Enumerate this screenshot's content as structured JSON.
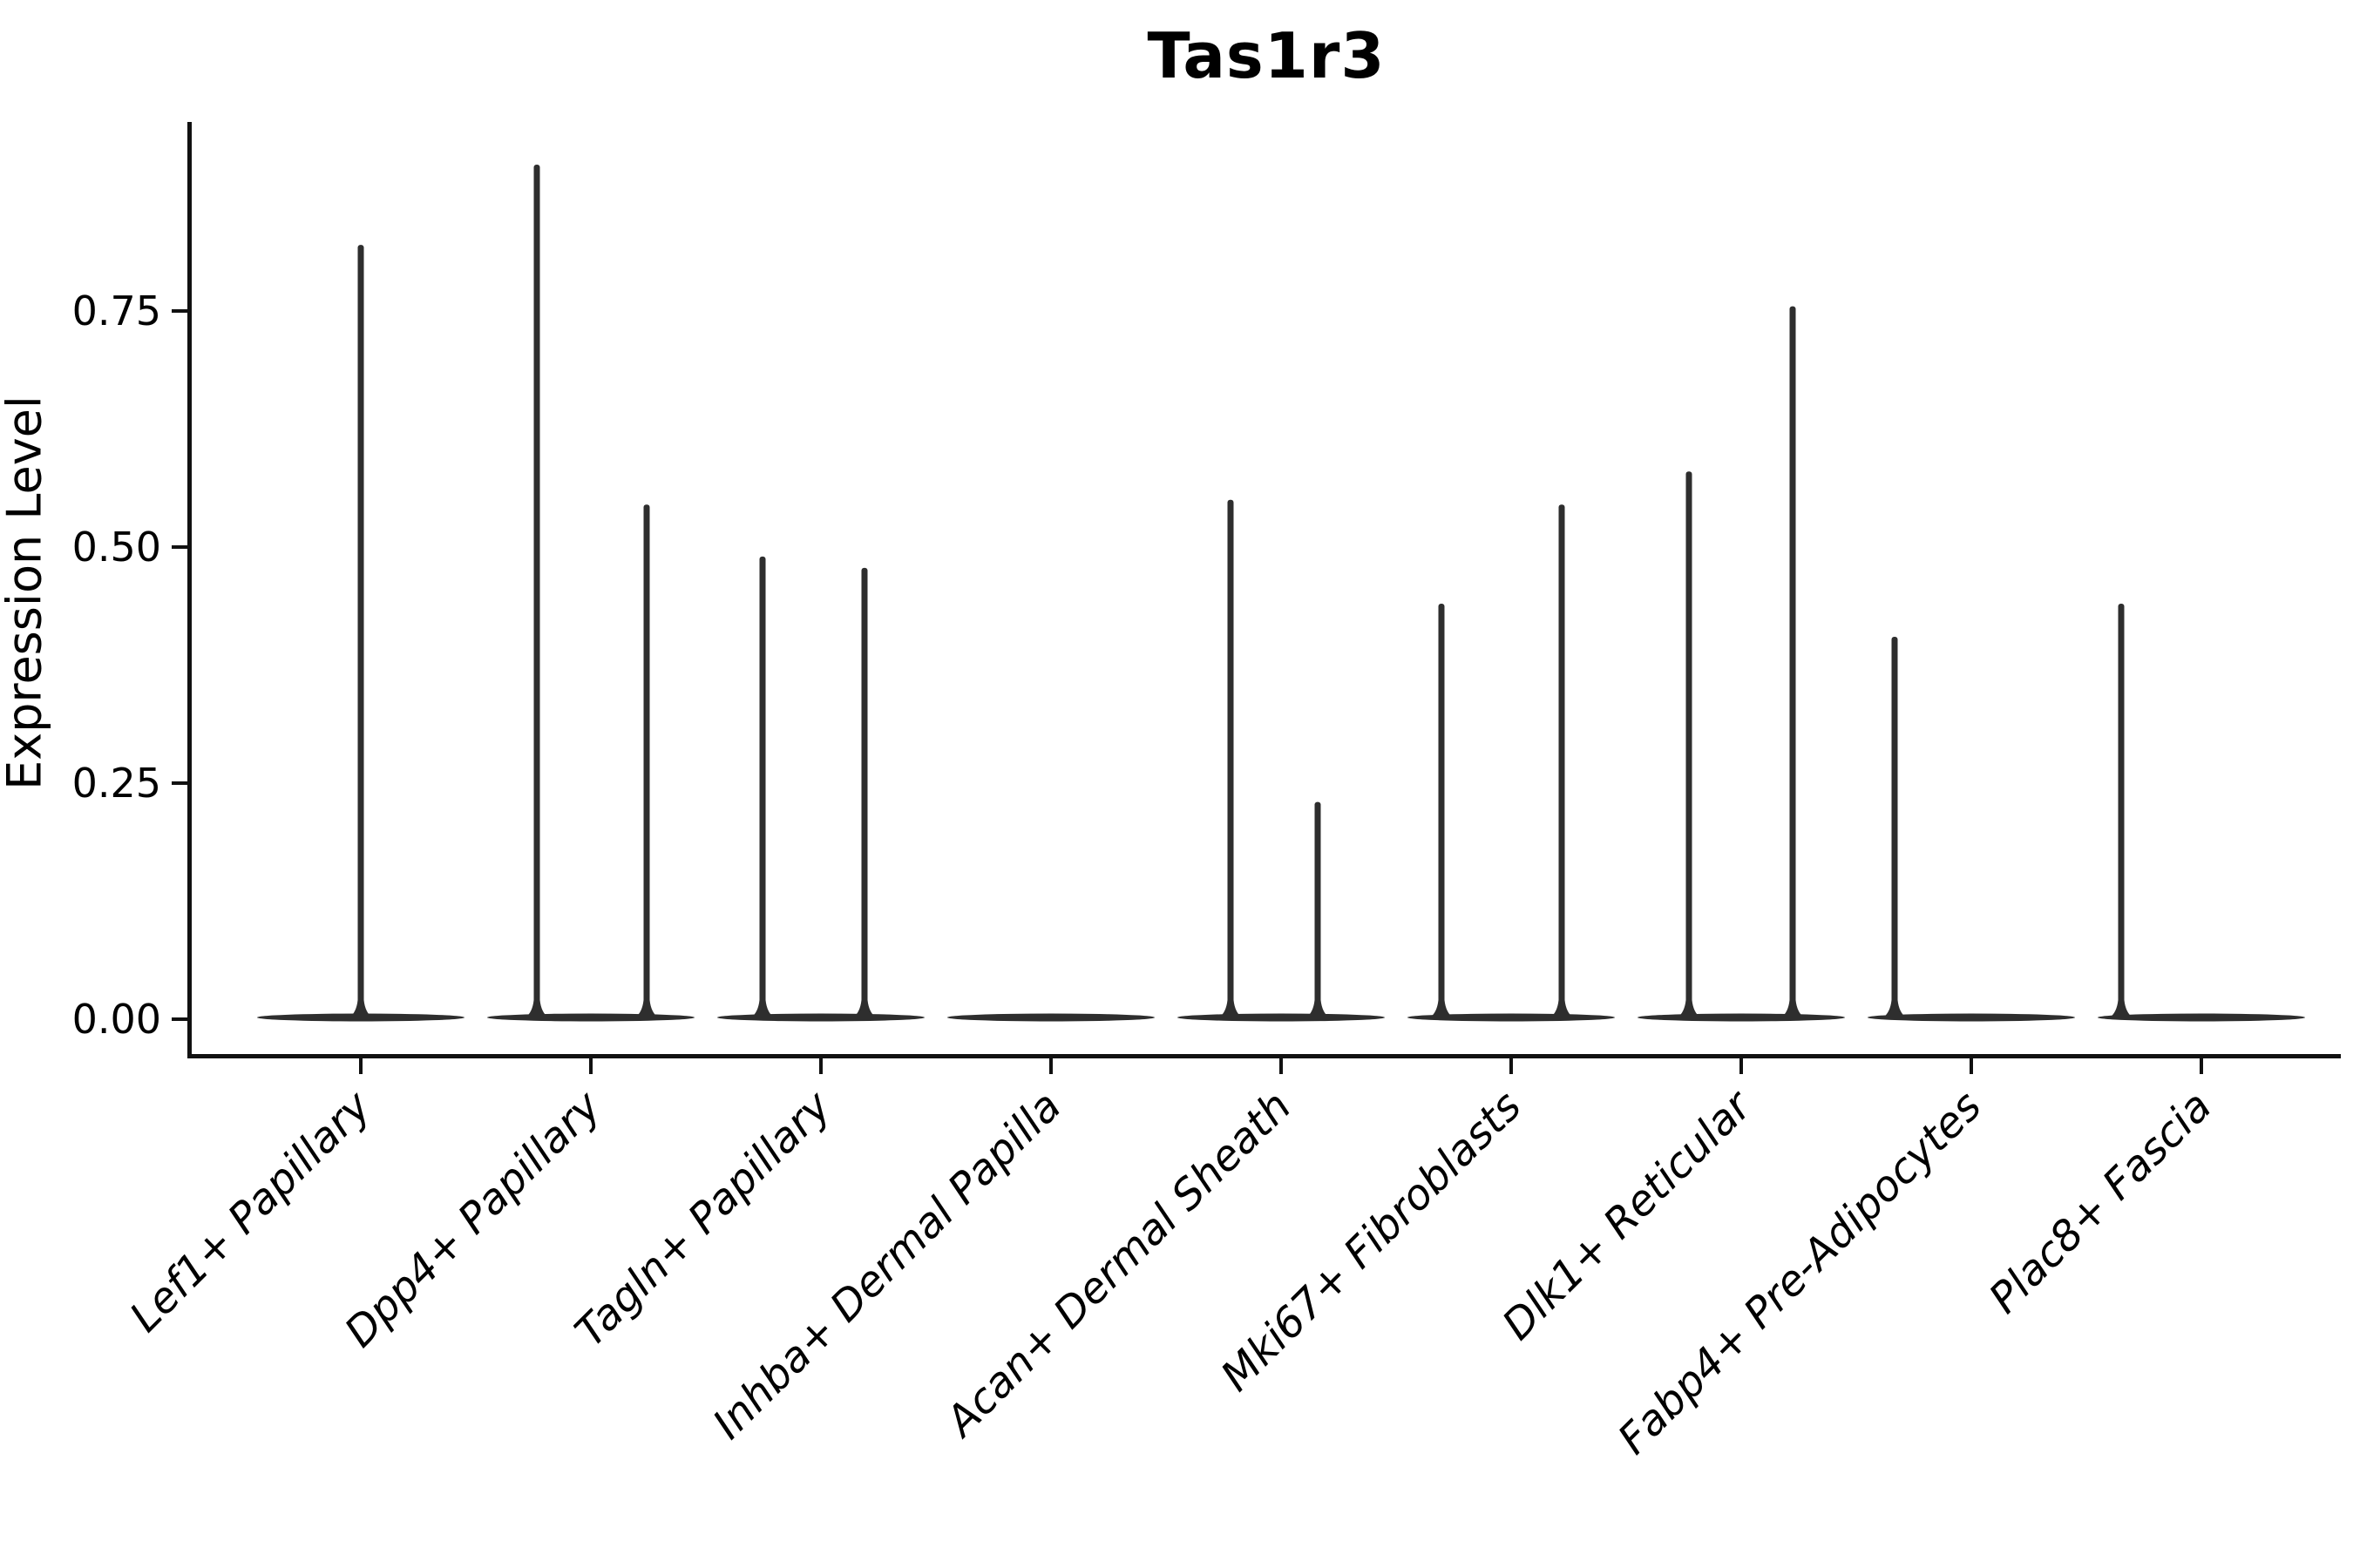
{
  "figure": {
    "title": "Tas1r3",
    "ylabel": "Expression Level"
  },
  "chart_data": {
    "type": "violin",
    "title": "Tas1r3",
    "xlabel": "",
    "ylabel": "Expression Level",
    "ylim": [
      -0.035,
      0.95
    ],
    "grid": false,
    "legend": false,
    "background": "#ffffff",
    "yticks": [
      {
        "label": "0.00",
        "value": 0.0
      },
      {
        "label": "0.25",
        "value": 0.25
      },
      {
        "label": "0.50",
        "value": 0.5
      },
      {
        "label": "0.75",
        "value": 0.75
      }
    ],
    "categories": [
      "Lef1+ Papillary",
      "Dpp4+ Papillary",
      "Tagln+ Papillary",
      "Inhba+ Dermal Papilla",
      "Acan+ Dermal Sheath",
      "Mki67+ Fibroblasts",
      "Dlk1+ Reticular",
      "Fabp4+ Pre-Adipocytes",
      "Plac8+ Fascia"
    ],
    "violins": [
      {
        "category": "Lef1+ Papillary",
        "base_at_zero": true,
        "spikes": [
          {
            "dx": 0,
            "max": 0.82
          }
        ]
      },
      {
        "category": "Dpp4+ Papillary",
        "base_at_zero": true,
        "spikes": [
          {
            "dx": -62,
            "max": 0.905
          },
          {
            "dx": 64,
            "max": 0.545
          }
        ]
      },
      {
        "category": "Tagln+ Papillary",
        "base_at_zero": true,
        "spikes": [
          {
            "dx": -67,
            "max": 0.49
          },
          {
            "dx": 50,
            "max": 0.478
          }
        ]
      },
      {
        "category": "Inhba+ Dermal Papilla",
        "base_at_zero": true,
        "spikes": []
      },
      {
        "category": "Acan+ Dermal Sheath",
        "base_at_zero": true,
        "spikes": [
          {
            "dx": -58,
            "max": 0.55
          },
          {
            "dx": 42,
            "max": 0.23
          }
        ]
      },
      {
        "category": "Mki67+ Fibroblasts",
        "base_at_zero": true,
        "spikes": [
          {
            "dx": -80,
            "max": 0.44
          },
          {
            "dx": 58,
            "max": 0.545
          }
        ]
      },
      {
        "category": "Dlk1+ Reticular",
        "base_at_zero": true,
        "spikes": [
          {
            "dx": -60,
            "max": 0.58
          },
          {
            "dx": 59,
            "max": 0.755
          }
        ]
      },
      {
        "category": "Fabp4+ Pre-Adipocytes",
        "base_at_zero": true,
        "spikes": [
          {
            "dx": -88,
            "max": 0.405
          }
        ]
      },
      {
        "category": "Plac8+ Fascia",
        "base_at_zero": true,
        "spikes": [
          {
            "dx": -92,
            "max": 0.44
          }
        ]
      }
    ],
    "colors": {
      "violin": "#2e2e2e",
      "axis": "#111111",
      "text": "#000000",
      "background": "#ffffff"
    }
  }
}
